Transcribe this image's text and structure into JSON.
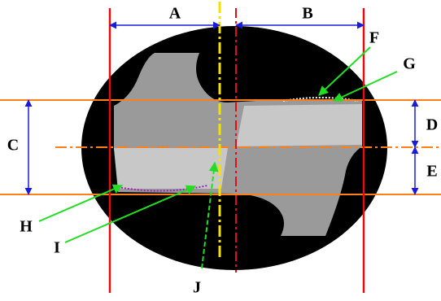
{
  "labels": [
    "A",
    "B",
    "C",
    "D",
    "E",
    "F",
    "G",
    "H",
    "I",
    "J"
  ]
}
